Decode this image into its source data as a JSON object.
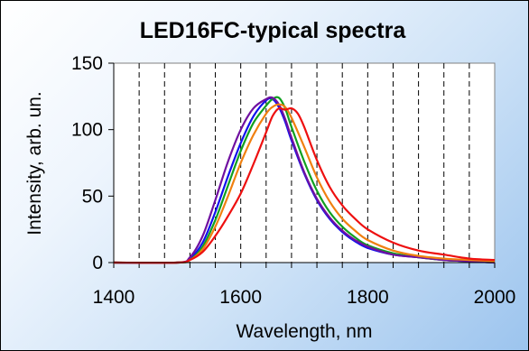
{
  "chart_data": {
    "type": "line",
    "title": "LED16FC-typical spectra",
    "xlabel": "Wavelength, nm",
    "ylabel": "Intensity, arb. un.",
    "xlim": [
      1400,
      2000
    ],
    "ylim": [
      0,
      150
    ],
    "xticks": [
      1400,
      1600,
      1800,
      2000
    ],
    "yticks": [
      0,
      50,
      100,
      150
    ],
    "x_minor_grid_step": 40,
    "grid": "vertical dashed",
    "legend": "none",
    "series": [
      {
        "color": "#1010ee",
        "x": [
          1400,
          1500,
          1520,
          1540,
          1560,
          1580,
          1600,
          1620,
          1640,
          1650,
          1660,
          1670,
          1680,
          1700,
          1720,
          1740,
          1760,
          1780,
          1800,
          1840,
          1880,
          1920,
          1960,
          2000
        ],
        "y": [
          0,
          0,
          3,
          15,
          38,
          65,
          90,
          110,
          122,
          123,
          117,
          106,
          92,
          67,
          47,
          33,
          23,
          16,
          11,
          6,
          4,
          2,
          1,
          0
        ]
      },
      {
        "color": "#10a020",
        "x": [
          1400,
          1500,
          1520,
          1540,
          1560,
          1580,
          1600,
          1620,
          1640,
          1650,
          1660,
          1670,
          1680,
          1700,
          1720,
          1740,
          1760,
          1780,
          1800,
          1840,
          1880,
          1920,
          1960,
          2000
        ],
        "y": [
          0,
          0,
          2,
          12,
          32,
          58,
          84,
          105,
          118,
          123,
          124,
          116,
          102,
          76,
          54,
          38,
          27,
          19,
          13,
          7,
          4,
          2,
          1,
          0
        ]
      },
      {
        "color": "#7010a0",
        "x": [
          1400,
          1500,
          1520,
          1540,
          1560,
          1580,
          1600,
          1620,
          1640,
          1650,
          1660,
          1670,
          1680,
          1700,
          1720,
          1740,
          1760,
          1780,
          1800,
          1840,
          1880,
          1920,
          1960,
          2000
        ],
        "y": [
          0,
          0,
          4,
          20,
          47,
          76,
          100,
          116,
          123,
          124,
          119,
          108,
          94,
          68,
          48,
          34,
          24,
          17,
          12,
          6,
          4,
          2,
          1,
          0
        ]
      },
      {
        "color": "#f08010",
        "x": [
          1400,
          1500,
          1520,
          1540,
          1560,
          1580,
          1600,
          1620,
          1640,
          1650,
          1660,
          1670,
          1680,
          1700,
          1720,
          1740,
          1760,
          1780,
          1800,
          1840,
          1880,
          1920,
          1960,
          2000
        ],
        "y": [
          0,
          0,
          2,
          10,
          27,
          50,
          75,
          96,
          112,
          117,
          119,
          117,
          109,
          87,
          64,
          46,
          33,
          24,
          17,
          9,
          5,
          3,
          2,
          1
        ]
      },
      {
        "color": "#ee1010",
        "x": [
          1400,
          1500,
          1520,
          1540,
          1560,
          1580,
          1600,
          1620,
          1640,
          1650,
          1660,
          1670,
          1680,
          1690,
          1700,
          1720,
          1740,
          1760,
          1780,
          1800,
          1840,
          1880,
          1920,
          1960,
          2000
        ],
        "y": [
          0,
          0,
          2,
          8,
          20,
          35,
          52,
          74,
          98,
          110,
          116,
          115,
          116,
          112,
          102,
          77,
          57,
          43,
          33,
          25,
          15,
          9,
          6,
          3,
          2
        ]
      }
    ]
  }
}
